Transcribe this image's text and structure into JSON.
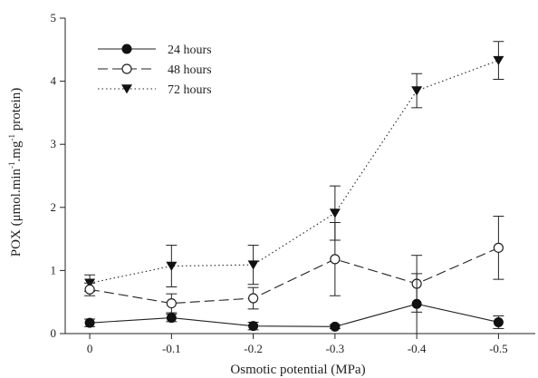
{
  "chart_data": {
    "type": "line",
    "title": "",
    "xlabel": "Osmotic potential (MPa)",
    "ylabel": {
      "prefix": "POX (μmol.min",
      "sup1": "-1",
      "middle": ".mg",
      "sup2": "-1",
      "suffix": " protein)"
    },
    "x": [
      0,
      -0.1,
      -0.2,
      -0.3,
      -0.4,
      -0.5
    ],
    "x_tick_labels": [
      "0",
      "-0.1",
      "-0.2",
      "-0.3",
      "-0.4",
      "-0.5"
    ],
    "xlim": [
      0.03,
      -0.545
    ],
    "ylim": [
      0,
      5
    ],
    "y_ticks": [
      0,
      1,
      2,
      3,
      4,
      5
    ],
    "y_tick_labels": [
      "0",
      "1",
      "2",
      "3",
      "4",
      "5"
    ],
    "grid": false,
    "legend_position": "top-left",
    "series": [
      {
        "name": "24 hours",
        "marker": "filled-circle",
        "line_style": "solid",
        "values": [
          0.17,
          0.25,
          0.12,
          0.11,
          0.47,
          0.18
        ],
        "errors": [
          0.06,
          0.06,
          0.06,
          0.03,
          0.48,
          0.1
        ]
      },
      {
        "name": "48 hours",
        "marker": "open-circle",
        "line_style": "dashed",
        "values": [
          0.7,
          0.48,
          0.56,
          1.18,
          0.79,
          1.36
        ],
        "errors": [
          0.1,
          0.15,
          0.17,
          0.58,
          0.45,
          0.5
        ]
      },
      {
        "name": "72 hours",
        "marker": "filled-triangle-down",
        "line_style": "dotted",
        "values": [
          0.8,
          1.07,
          1.09,
          1.91,
          3.85,
          4.33
        ],
        "errors": [
          0.13,
          0.33,
          0.31,
          0.43,
          0.27,
          0.3
        ]
      }
    ]
  }
}
